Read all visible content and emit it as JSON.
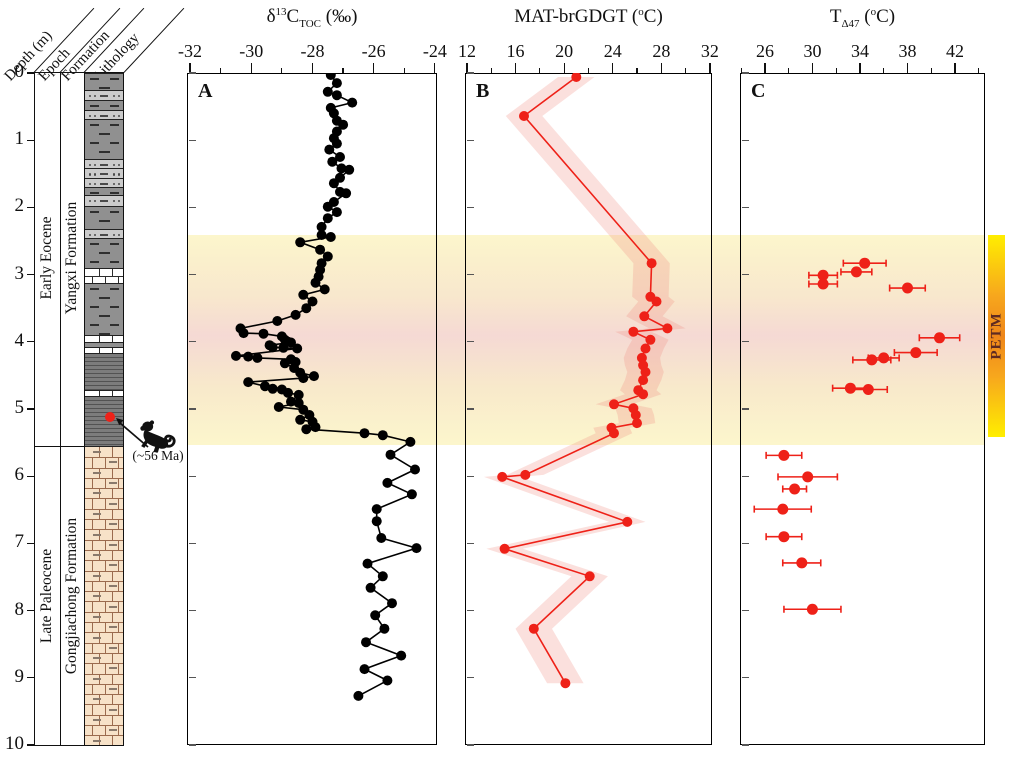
{
  "header": {
    "depth_label": "Depth (m)",
    "epoch_label": "Epoch",
    "formation_label": "Formation",
    "lithology_label": "Lithology"
  },
  "depth_axis": {
    "min": 0,
    "max": 10,
    "unit": "m",
    "ticks": [
      0,
      1,
      2,
      3,
      4,
      5,
      6,
      7,
      8,
      9,
      10
    ]
  },
  "epochs": [
    {
      "label": "Early Eocene",
      "top_depth": 0,
      "bottom_depth": 5.55
    },
    {
      "label": "Late Paleocene",
      "top_depth": 5.55,
      "bottom_depth": 10
    }
  ],
  "formations": [
    {
      "label": "Yangxi Formation",
      "top_depth": 0,
      "bottom_depth": 5.55
    },
    {
      "label": "Gongjiachong Formation",
      "top_depth": 5.55,
      "bottom_depth": 10
    }
  ],
  "lithology_segments": [
    {
      "t": "mudstone",
      "d0": 0,
      "d1": 0.25
    },
    {
      "t": "siltstone",
      "d0": 0.25,
      "d1": 0.4
    },
    {
      "t": "mudstone",
      "d0": 0.4,
      "d1": 0.55
    },
    {
      "t": "siltstone",
      "d0": 0.55,
      "d1": 0.68
    },
    {
      "t": "mudstone",
      "d0": 0.68,
      "d1": 1.28
    },
    {
      "t": "siltstone",
      "d0": 1.28,
      "d1": 1.42
    },
    {
      "t": "siltstone",
      "d0": 1.42,
      "d1": 1.56
    },
    {
      "t": "siltstone",
      "d0": 1.56,
      "d1": 1.7
    },
    {
      "t": "mudstone",
      "d0": 1.7,
      "d1": 1.82
    },
    {
      "t": "siltstone",
      "d0": 1.82,
      "d1": 1.98
    },
    {
      "t": "mudstone",
      "d0": 1.98,
      "d1": 2.32
    },
    {
      "t": "siltstone",
      "d0": 2.32,
      "d1": 2.46
    },
    {
      "t": "mudstone",
      "d0": 2.46,
      "d1": 2.9
    },
    {
      "t": "limestone",
      "d0": 2.9,
      "d1": 3.12
    },
    {
      "t": "mudstone",
      "d0": 3.12,
      "d1": 3.9
    },
    {
      "t": "limestone",
      "d0": 3.9,
      "d1": 4.0
    },
    {
      "t": "mudstone",
      "d0": 4.0,
      "d1": 4.08
    },
    {
      "t": "limestone",
      "d0": 4.08,
      "d1": 4.17
    },
    {
      "t": "shale",
      "d0": 4.17,
      "d1": 4.72
    },
    {
      "t": "limestone",
      "d0": 4.72,
      "d1": 4.8
    },
    {
      "t": "shale",
      "d0": 4.8,
      "d1": 5.55
    },
    {
      "t": "marl",
      "d0": 5.55,
      "d1": 10
    }
  ],
  "marker": {
    "label": "(~56 Ma)",
    "depth": 5.12,
    "icon": "monkey-icon",
    "dot_color": "#ee2118"
  },
  "petm": {
    "label": "PETM",
    "top_depth": 2.41,
    "bottom_depth": 5.53
  },
  "colors": {
    "accent_red": "#ee2118",
    "envelope_pink": "#f29084",
    "band_yellow": "#fcf6cc",
    "band_pink": "#f5d9d4",
    "marl_tan": "#f7e2c8",
    "petm_orange": "#ee861a",
    "petm_yellow": "#ffee00"
  },
  "chart_data": [
    {
      "id": "A",
      "panel_label": "A",
      "type": "line",
      "orientation": "depth-profile",
      "title": "d13C_TOC (permil)",
      "title_parts": [
        [
          "n",
          "δ"
        ],
        [
          "sup",
          "13"
        ],
        [
          "n",
          "C"
        ],
        [
          "sub",
          "TOC"
        ],
        [
          "n",
          " (‰)"
        ]
      ],
      "xlim": [
        -32.1,
        -23.93
      ],
      "xticks": [
        -32,
        -30,
        -28,
        -26,
        -24
      ],
      "ylabel": "Depth (m)",
      "ylim": [
        0,
        10
      ],
      "point_format": "[depth_m, value]",
      "series": [
        {
          "name": "d13C TOC",
          "color": "#000000",
          "points": [
            [
              0.03,
              -27.4
            ],
            [
              0.15,
              -27.2
            ],
            [
              0.28,
              -27.5
            ],
            [
              0.33,
              -27.2
            ],
            [
              0.44,
              -26.7
            ],
            [
              0.52,
              -27.4
            ],
            [
              0.6,
              -27.3
            ],
            [
              0.71,
              -27.2
            ],
            [
              0.77,
              -27.0
            ],
            [
              0.87,
              -27.2
            ],
            [
              0.97,
              -27.3
            ],
            [
              1.05,
              -27.2
            ],
            [
              1.14,
              -27.45
            ],
            [
              1.25,
              -27.1
            ],
            [
              1.32,
              -27.35
            ],
            [
              1.42,
              -27.05
            ],
            [
              1.44,
              -26.8
            ],
            [
              1.56,
              -27.1
            ],
            [
              1.64,
              -27.3
            ],
            [
              1.77,
              -27.1
            ],
            [
              1.79,
              -26.9
            ],
            [
              1.92,
              -27.3
            ],
            [
              1.99,
              -27.5
            ],
            [
              2.07,
              -27.2
            ],
            [
              2.16,
              -27.5
            ],
            [
              2.29,
              -27.7
            ],
            [
              2.41,
              -27.7
            ],
            [
              2.44,
              -27.4
            ],
            [
              2.52,
              -28.4
            ],
            [
              2.63,
              -27.75
            ],
            [
              2.73,
              -27.5
            ],
            [
              2.83,
              -27.7
            ],
            [
              2.93,
              -27.75
            ],
            [
              3.03,
              -27.8
            ],
            [
              3.12,
              -27.9
            ],
            [
              3.22,
              -27.6
            ],
            [
              3.3,
              -28.3
            ],
            [
              3.4,
              -28.0
            ],
            [
              3.5,
              -28.2
            ],
            [
              3.6,
              -28.55
            ],
            [
              3.69,
              -29.15
            ],
            [
              3.8,
              -30.35
            ],
            [
              3.87,
              -30.25
            ],
            [
              3.88,
              -29.6
            ],
            [
              3.92,
              -29.0
            ],
            [
              3.97,
              -28.9
            ],
            [
              4.0,
              -28.8
            ],
            [
              4.01,
              -28.7
            ],
            [
              4.05,
              -29.4
            ],
            [
              4.08,
              -29.3
            ],
            [
              4.09,
              -28.95
            ],
            [
              4.1,
              -28.5
            ],
            [
              4.21,
              -30.5
            ],
            [
              4.22,
              -30.1
            ],
            [
              4.24,
              -29.8
            ],
            [
              4.26,
              -28.7
            ],
            [
              4.3,
              -28.55
            ],
            [
              4.32,
              -28.9
            ],
            [
              4.39,
              -28.6
            ],
            [
              4.46,
              -28.4
            ],
            [
              4.51,
              -27.95
            ],
            [
              4.54,
              -28.3
            ],
            [
              4.6,
              -30.1
            ],
            [
              4.66,
              -29.55
            ],
            [
              4.7,
              -29.3
            ],
            [
              4.71,
              -29.0
            ],
            [
              4.76,
              -28.8
            ],
            [
              4.79,
              -28.45
            ],
            [
              4.89,
              -28.7
            ],
            [
              4.91,
              -28.45
            ],
            [
              4.97,
              -29.1
            ],
            [
              5.01,
              -28.3
            ],
            [
              5.09,
              -28.1
            ],
            [
              5.16,
              -28.4
            ],
            [
              5.19,
              -28.0
            ],
            [
              5.27,
              -27.9
            ],
            [
              5.3,
              -28.2
            ],
            [
              5.36,
              -26.3
            ],
            [
              5.39,
              -25.7
            ],
            [
              5.49,
              -24.8
            ],
            [
              5.68,
              -25.45
            ],
            [
              5.9,
              -24.65
            ],
            [
              6.1,
              -25.55
            ],
            [
              6.27,
              -24.75
            ],
            [
              6.49,
              -25.9
            ],
            [
              6.67,
              -25.9
            ],
            [
              6.92,
              -25.75
            ],
            [
              7.07,
              -24.6
            ],
            [
              7.3,
              -26.2
            ],
            [
              7.49,
              -25.7
            ],
            [
              7.66,
              -26.1
            ],
            [
              7.89,
              -25.4
            ],
            [
              8.07,
              -25.95
            ],
            [
              8.27,
              -25.65
            ],
            [
              8.47,
              -26.25
            ],
            [
              8.67,
              -25.1
            ],
            [
              8.87,
              -26.3
            ],
            [
              9.04,
              -25.55
            ],
            [
              9.27,
              -26.5
            ]
          ]
        }
      ]
    },
    {
      "id": "B",
      "panel_label": "B",
      "type": "line",
      "orientation": "depth-profile",
      "title": "MAT-brGDGT (degC)",
      "title_parts": [
        [
          "n",
          "MAT-brGDGT ("
        ],
        [
          "sup",
          "o"
        ],
        [
          "n",
          "C)"
        ]
      ],
      "xlim": [
        11.84,
        32.17
      ],
      "xticks": [
        12,
        16,
        20,
        24,
        28,
        32
      ],
      "ylabel": "Depth (m)",
      "ylim": [
        0,
        10
      ],
      "envelope": true,
      "envelope_halfwidth": 1.5,
      "point_format": "[depth_m, value_degC]",
      "series": [
        {
          "name": "MAT-brGDGT",
          "color": "#ee2118",
          "points": [
            [
              0.06,
              21.0
            ],
            [
              0.64,
              16.7
            ],
            [
              2.83,
              27.2
            ],
            [
              3.33,
              27.1
            ],
            [
              3.4,
              27.6
            ],
            [
              3.62,
              26.6
            ],
            [
              3.8,
              28.5
            ],
            [
              3.85,
              25.7
            ],
            [
              3.97,
              27.1
            ],
            [
              4.1,
              26.7
            ],
            [
              4.24,
              26.4
            ],
            [
              4.35,
              26.5
            ],
            [
              4.45,
              26.7
            ],
            [
              4.57,
              26.5
            ],
            [
              4.72,
              26.1
            ],
            [
              4.78,
              26.5
            ],
            [
              4.93,
              24.1
            ],
            [
              4.99,
              25.7
            ],
            [
              5.09,
              25.9
            ],
            [
              5.21,
              26.0
            ],
            [
              5.28,
              23.9
            ],
            [
              5.36,
              24.1
            ],
            [
              5.98,
              16.8
            ],
            [
              6.01,
              14.9
            ],
            [
              6.68,
              25.2
            ],
            [
              7.08,
              15.1
            ],
            [
              7.49,
              22.1
            ],
            [
              8.27,
              17.5
            ],
            [
              9.08,
              20.1
            ]
          ]
        }
      ]
    },
    {
      "id": "C",
      "panel_label": "C",
      "type": "scatter",
      "orientation": "depth-profile",
      "title": "T_D47 (degC)",
      "title_parts": [
        [
          "n",
          "T"
        ],
        [
          "sub",
          "Δ47"
        ],
        [
          "n",
          " ("
        ],
        [
          "sup",
          "o"
        ],
        [
          "n",
          "C)"
        ]
      ],
      "xlim": [
        23.9,
        44.53
      ],
      "xticks": [
        26,
        30,
        34,
        38,
        42
      ],
      "ylabel": "Depth (m)",
      "ylim": [
        0,
        10
      ],
      "connect": false,
      "error_bars": true,
      "point_format": "[depth_m, value_degC, err_degC]",
      "series": [
        {
          "name": "T-D47 clumped isotope",
          "color": "#ee2118",
          "points": [
            [
              2.83,
              34.4,
              1.8
            ],
            [
              2.96,
              33.7,
              1.3
            ],
            [
              3.01,
              30.9,
              1.2
            ],
            [
              3.14,
              30.9,
              1.2
            ],
            [
              3.2,
              38.0,
              1.5
            ],
            [
              3.94,
              40.7,
              1.7
            ],
            [
              4.16,
              38.7,
              1.8
            ],
            [
              4.24,
              36.0,
              1.3
            ],
            [
              4.27,
              35.0,
              1.6
            ],
            [
              4.69,
              33.2,
              1.5
            ],
            [
              4.71,
              34.7,
              1.6
            ],
            [
              5.69,
              27.6,
              1.5
            ],
            [
              6.01,
              29.6,
              2.5
            ],
            [
              6.19,
              28.5,
              1.0
            ],
            [
              6.49,
              27.5,
              2.4
            ],
            [
              6.9,
              27.6,
              1.5
            ],
            [
              7.29,
              29.1,
              1.6
            ],
            [
              7.98,
              30.0,
              2.4
            ]
          ]
        }
      ]
    }
  ]
}
